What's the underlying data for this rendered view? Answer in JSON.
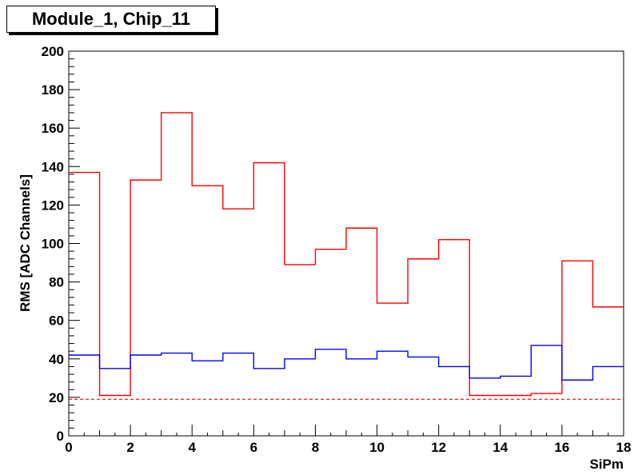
{
  "header": {
    "title": "Module_1, Chip_11"
  },
  "chart_data": {
    "type": "line",
    "title": "Module_1, Chip_11",
    "xlabel": "SiPm",
    "ylabel": "RMS [ADC Channels]",
    "xlim": [
      0,
      18
    ],
    "ylim": [
      0,
      200
    ],
    "x_ticks": [
      0,
      2,
      4,
      6,
      8,
      10,
      12,
      14,
      16,
      18
    ],
    "y_ticks": [
      0,
      20,
      40,
      60,
      80,
      100,
      120,
      140,
      160,
      180,
      200
    ],
    "grid": false,
    "legend": "none",
    "series": [
      {
        "style": "step",
        "color": "#ff0000",
        "bin_edges": [
          0,
          1,
          2,
          3,
          4,
          5,
          6,
          7,
          8,
          9,
          10,
          11,
          12,
          13,
          14,
          15,
          16,
          17,
          18
        ],
        "values": [
          137,
          21,
          133,
          168,
          130,
          118,
          142,
          89,
          97,
          108,
          69,
          92,
          102,
          21,
          21,
          22,
          91,
          67
        ]
      },
      {
        "style": "step",
        "color": "#0000ff",
        "bin_edges": [
          0,
          1,
          2,
          3,
          4,
          5,
          6,
          7,
          8,
          9,
          10,
          11,
          12,
          13,
          14,
          15,
          16,
          17,
          18
        ],
        "values": [
          42,
          35,
          42,
          43,
          39,
          43,
          35,
          40,
          45,
          40,
          44,
          41,
          36,
          30,
          31,
          47,
          29,
          36
        ]
      },
      {
        "style": "dashed",
        "color": "#ff0000",
        "x": [
          0,
          18
        ],
        "y": [
          19,
          19
        ]
      }
    ]
  }
}
